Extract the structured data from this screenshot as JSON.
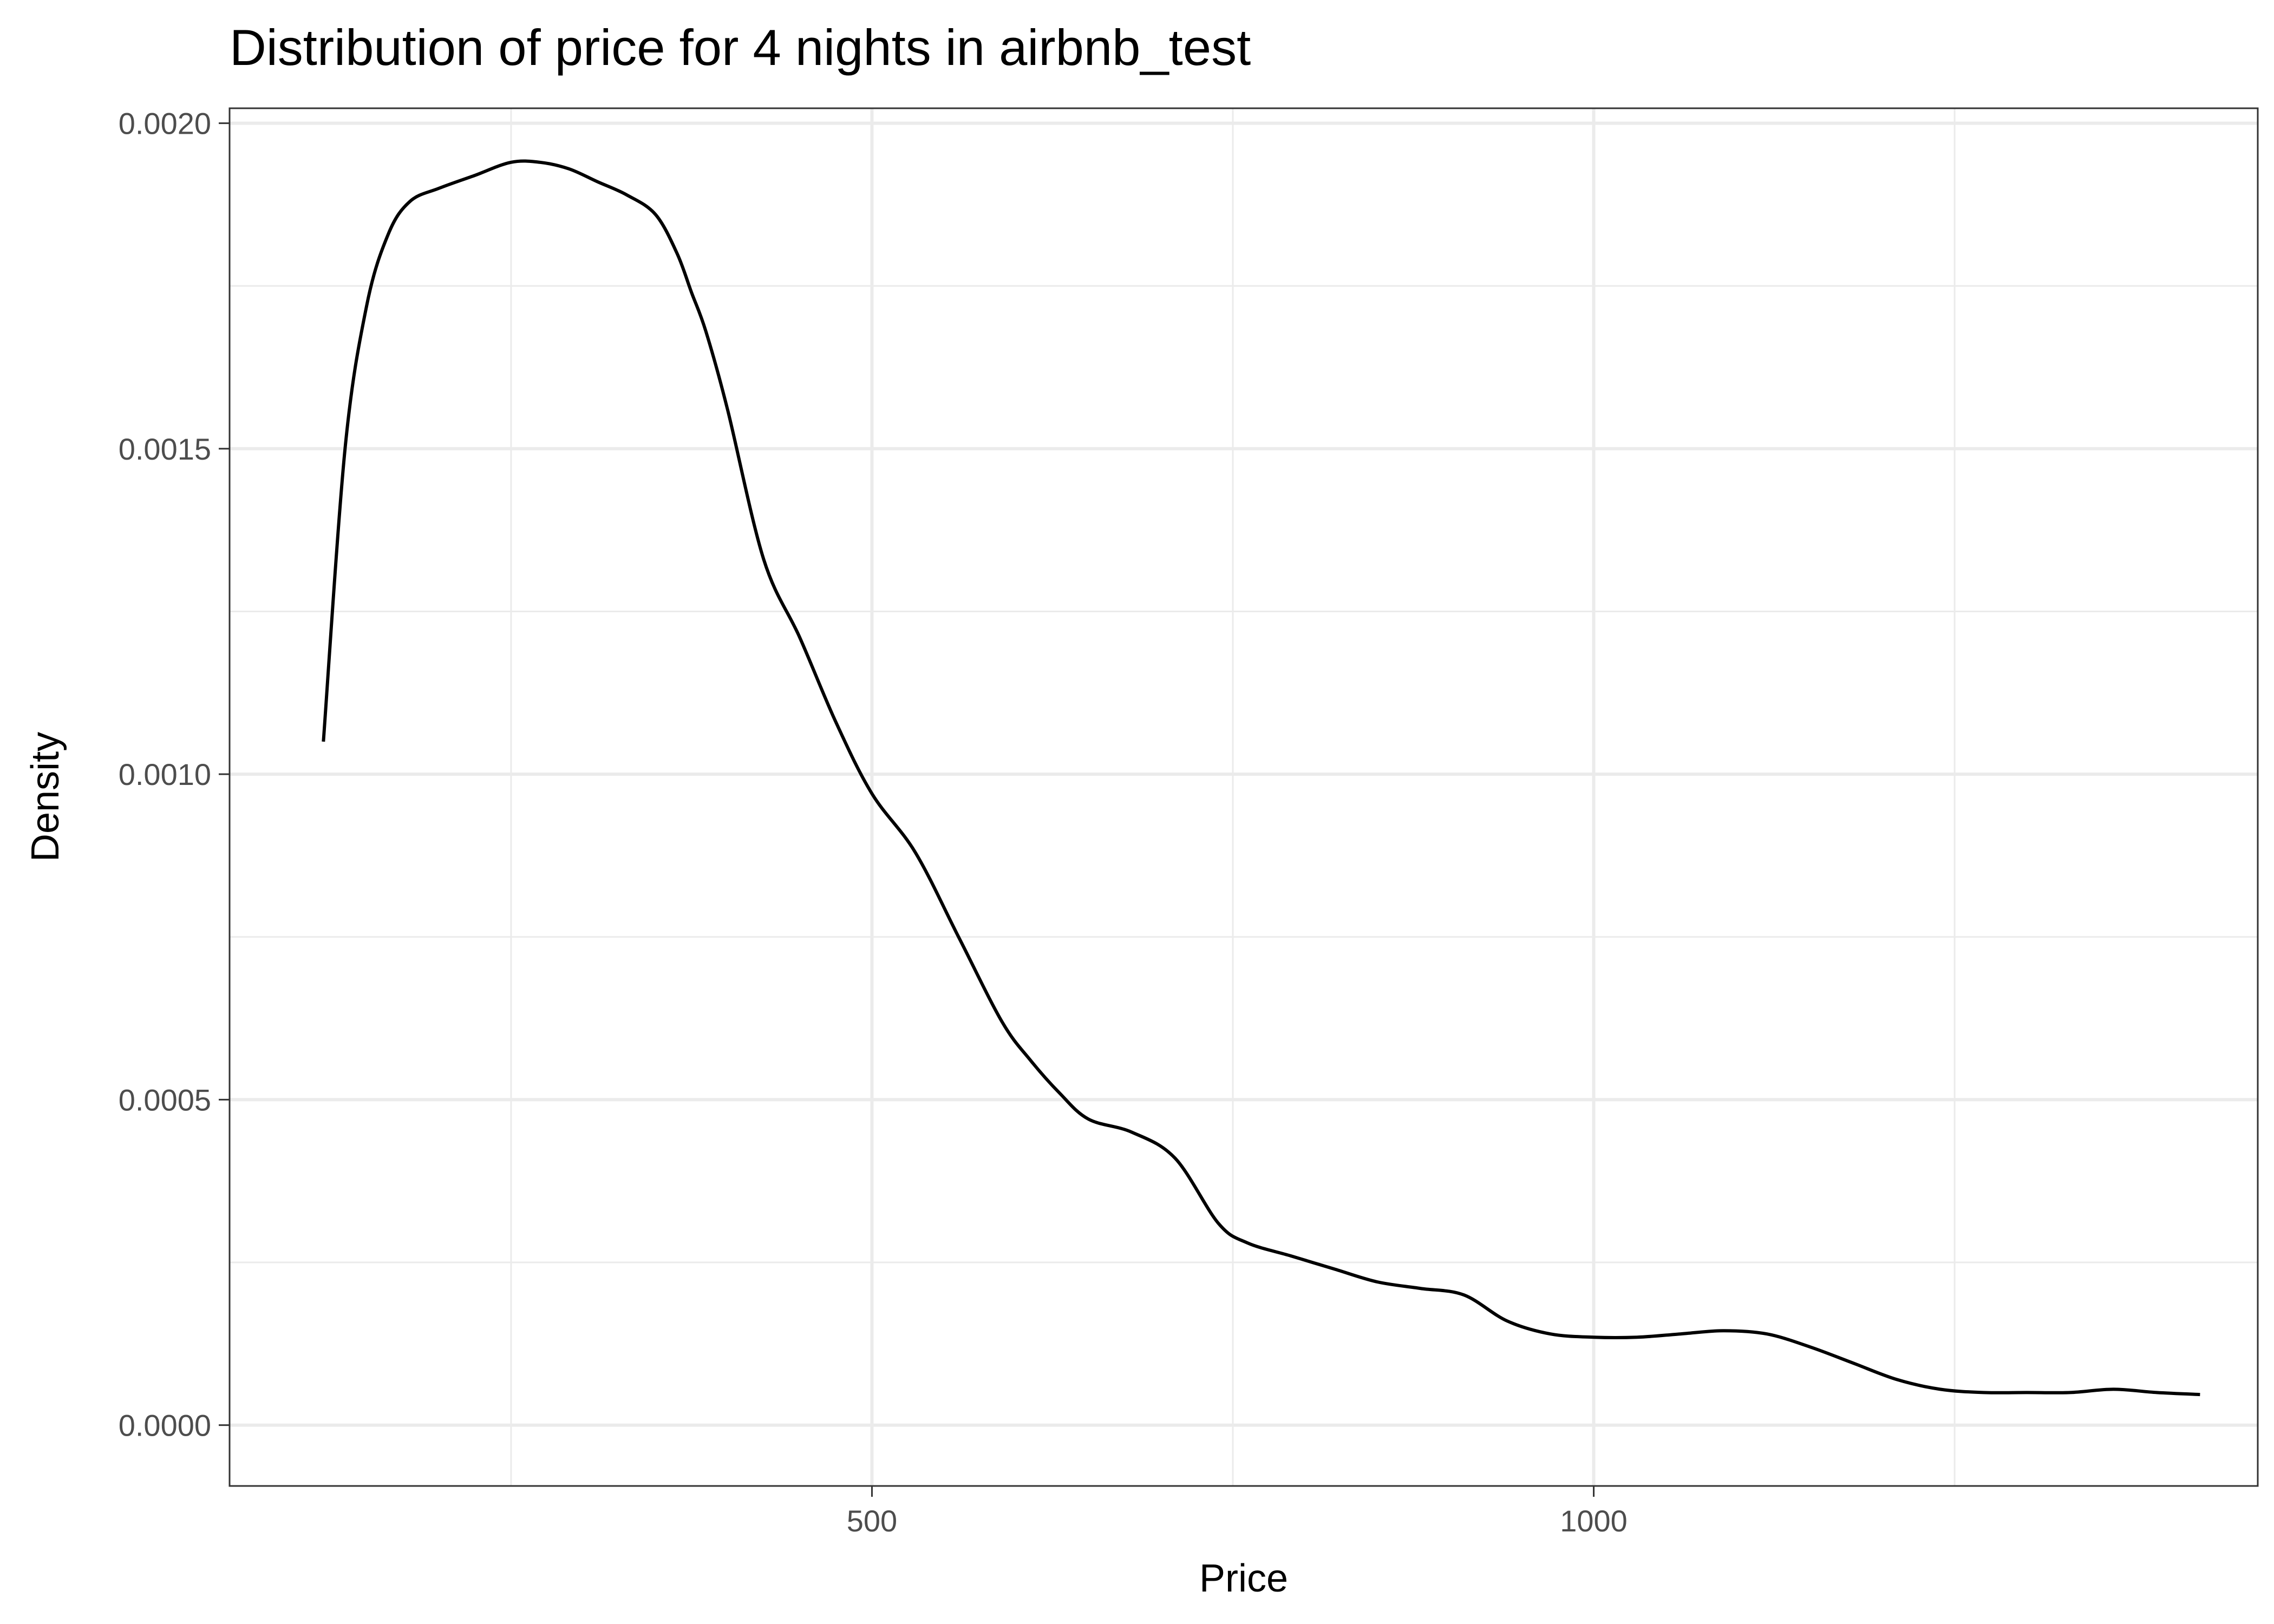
{
  "chart_data": {
    "type": "line",
    "title": "Distribution of price for 4 nights in airbnb_test",
    "xlabel": "Price",
    "ylabel": "Density",
    "xlim": [
      55,
      1460
    ],
    "ylim": [
      -9.35e-05,
      0.002023
    ],
    "x_ticks": [
      500,
      1000
    ],
    "x_tick_labels": [
      "500",
      "1000"
    ],
    "x_minor_ticks": [
      250,
      750,
      1250
    ],
    "y_ticks": [
      0,
      0.0005,
      0.001,
      0.0015,
      0.002
    ],
    "y_tick_labels": [
      "0.0000",
      "0.0005",
      "0.0010",
      "0.0015",
      "0.0020"
    ],
    "y_minor_ticks": [
      0.00025,
      0.00075,
      0.00125,
      0.00175
    ],
    "grid": true,
    "colors": {
      "line": "#000000",
      "grid": "#ebebeb",
      "border": "#333333",
      "background": "#ffffff"
    },
    "series": [
      {
        "x": [
          120,
          135,
          150,
          165,
          180,
          200,
          225,
          250,
          270,
          290,
          310,
          330,
          350,
          365,
          375,
          385,
          400,
          425,
          450,
          475,
          500,
          530,
          560,
          590,
          610,
          630,
          650,
          680,
          710,
          740,
          760,
          790,
          820,
          850,
          880,
          910,
          940,
          970,
          1000,
          1030,
          1060,
          1090,
          1120,
          1150,
          1180,
          1210,
          1240,
          1270,
          1300,
          1330,
          1360,
          1390,
          1420
        ],
        "y": [
          0.00105,
          0.0015,
          0.00172,
          0.00183,
          0.00188,
          0.0019,
          0.00192,
          0.00194,
          0.00194,
          0.00193,
          0.00191,
          0.00189,
          0.00186,
          0.0018,
          0.00174,
          0.00168,
          0.00156,
          0.00133,
          0.00121,
          0.00108,
          0.00097,
          0.00088,
          0.00075,
          0.00062,
          0.00056,
          0.00051,
          0.00047,
          0.00045,
          0.00041,
          0.00031,
          0.00028,
          0.00026,
          0.00024,
          0.00022,
          0.00021,
          0.0002,
          0.00016,
          0.00014,
          0.000135,
          0.000135,
          0.00014,
          0.000145,
          0.00014,
          0.00012,
          9.5e-05,
          7e-05,
          5.5e-05,
          5e-05,
          5e-05,
          5e-05,
          5.5e-05,
          5e-05,
          4.7e-05
        ]
      }
    ]
  }
}
